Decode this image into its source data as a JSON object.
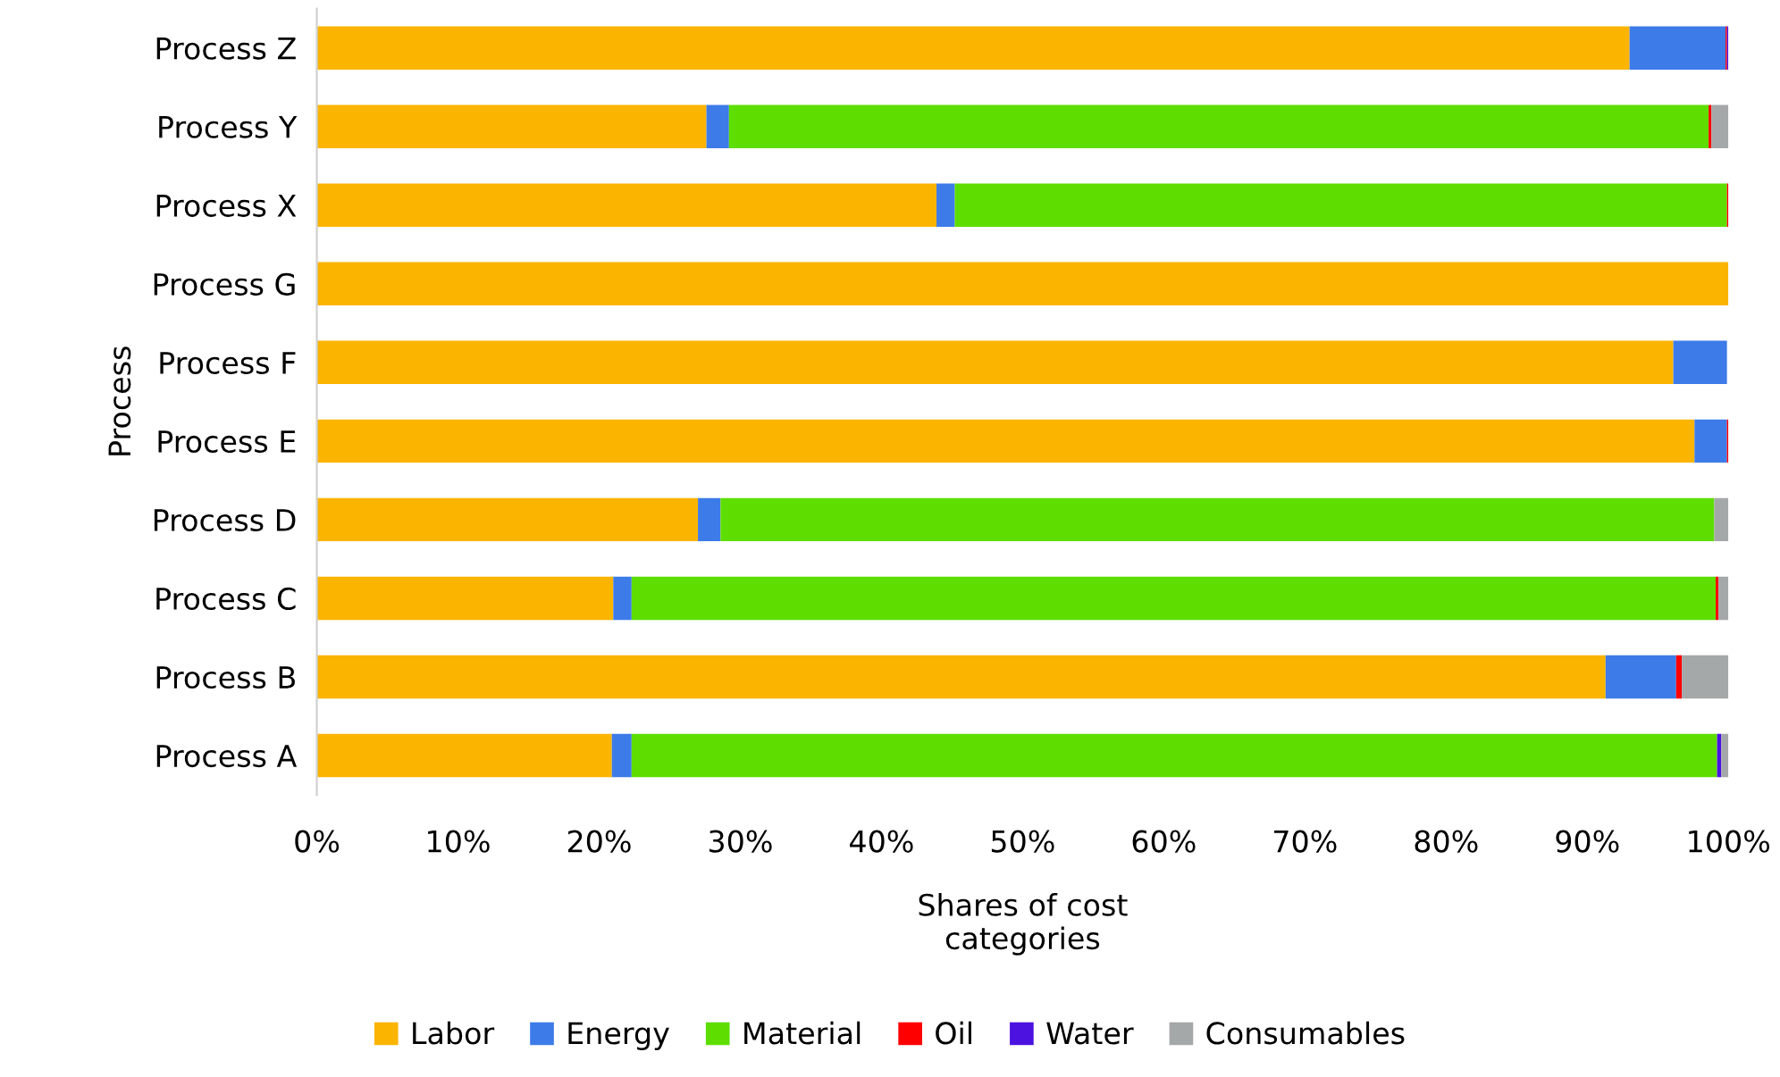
{
  "chart_data": {
    "type": "bar",
    "orientation": "horizontal",
    "stacked": true,
    "ylabel": "Process",
    "xlabel": "Shares of cost\ncategories",
    "categories": [
      "Process Z",
      "Process Y",
      "Process X",
      "Process G",
      "Process F",
      "Process E",
      "Process D",
      "Process C",
      "Process B",
      "Process A"
    ],
    "series": [
      {
        "name": "Labor",
        "color": "#fbb400",
        "values": [
          93.0,
          27.6,
          43.9,
          100,
          96.1,
          97.6,
          27.0,
          21.0,
          91.3,
          20.9
        ]
      },
      {
        "name": "Energy",
        "color": "#3d7be8",
        "values": [
          6.8,
          1.6,
          1.3,
          0,
          3.8,
          2.3,
          1.6,
          1.3,
          5.0,
          1.4
        ]
      },
      {
        "name": "Material",
        "color": "#5ede00",
        "values": [
          0,
          69.4,
          54.7,
          0,
          0,
          0,
          70.4,
          76.8,
          0,
          76.9
        ]
      },
      {
        "name": "Oil",
        "color": "#ff0000",
        "values": [
          0.1,
          0.2,
          0.1,
          0,
          0,
          0.1,
          0,
          0.2,
          0.4,
          0
        ]
      },
      {
        "name": "Water",
        "color": "#4b12e0",
        "values": [
          0.1,
          0,
          0,
          0,
          0,
          0,
          0,
          0,
          0,
          0.3
        ]
      },
      {
        "name": "Consumables",
        "color": "#a5a8a8",
        "values": [
          0,
          1.2,
          0,
          0,
          null,
          0,
          1.0,
          0.7,
          3.3,
          0.5
        ]
      }
    ],
    "xlim": [
      0,
      100
    ],
    "xticks": [
      {
        "value": 0,
        "label": "0%"
      },
      {
        "value": 10,
        "label": "10%"
      },
      {
        "value": 20,
        "label": "20%"
      },
      {
        "value": 30,
        "label": "30%"
      },
      {
        "value": 40,
        "label": "40%"
      },
      {
        "value": 50,
        "label": "50%"
      },
      {
        "value": 60,
        "label": "60%"
      },
      {
        "value": 70,
        "label": "70%"
      },
      {
        "value": 80,
        "label": "80%"
      },
      {
        "value": 90,
        "label": "90%"
      },
      {
        "value": 100,
        "label": "100%"
      }
    ],
    "grid": false,
    "legend": "bottom"
  }
}
